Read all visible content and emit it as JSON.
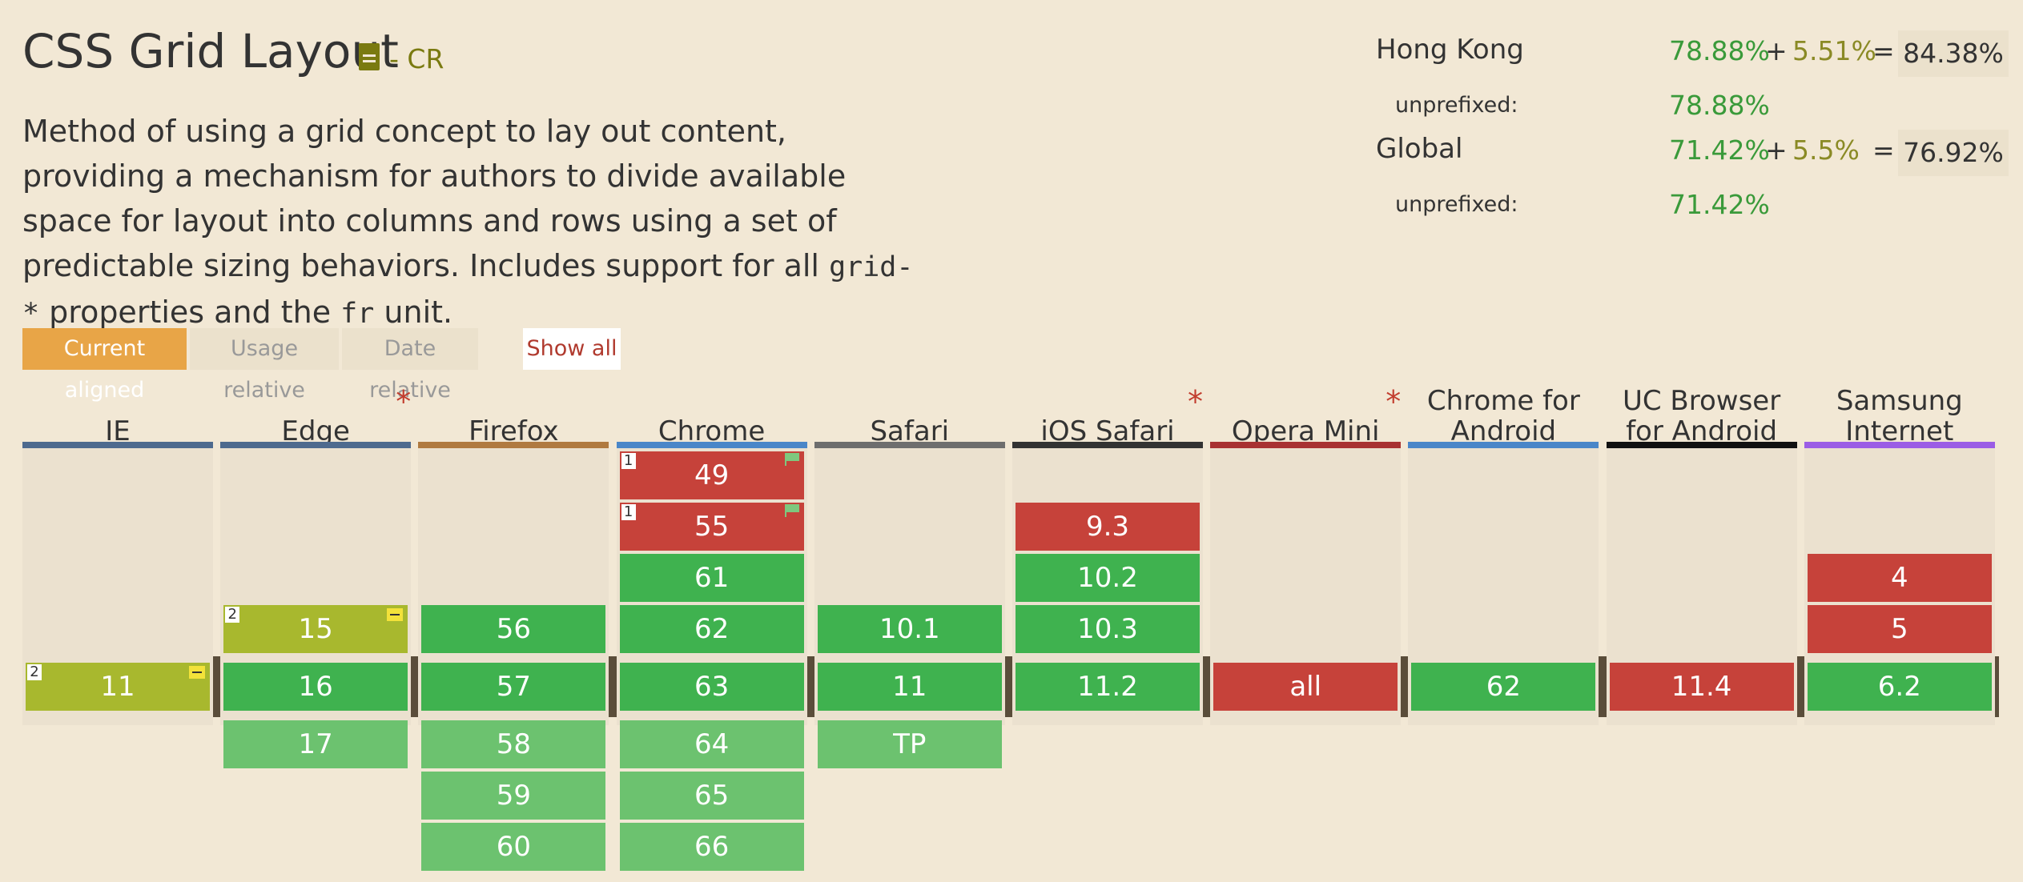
{
  "feature": {
    "title": "CSS Grid Layout",
    "status": "- CR",
    "description_parts": [
      "Method of using a grid concept to lay out content, providing a mechanism for authors to divide available space for layout into columns and rows using a set of predictable sizing behaviors. Includes support for all ",
      "grid-*",
      " properties and the ",
      "fr",
      " unit."
    ]
  },
  "usage": {
    "rows": [
      {
        "label": "Hong Kong",
        "full": "78.88%",
        "plus": "+",
        "partial": "5.51%",
        "eq": "=",
        "total": "84.38%"
      },
      {
        "label": "unprefixed:",
        "full": "78.88%"
      },
      {
        "label": "Global",
        "full": "71.42%",
        "plus": "+",
        "partial": "5.5%",
        "eq": "=",
        "total": "76.92%"
      },
      {
        "label": "unprefixed:",
        "full": "71.42%"
      }
    ]
  },
  "tabs": {
    "current_aligned": "Current aligned",
    "usage_relative": "Usage relative",
    "date_relative": "Date relative",
    "show_all": "Show all"
  },
  "colors": {
    "supported": "#3fb24f",
    "future_supported": "#6cc26f",
    "unsupported": "#c6423a",
    "partial": "#a8b82e",
    "accent": "#e8a547"
  },
  "browsers": [
    {
      "name": "IE",
      "star": "",
      "bar": "#4e6a8e",
      "cells": {
        "current": {
          "v": "11",
          "s": "partial",
          "note": "2",
          "minus": true
        }
      }
    },
    {
      "name": "Edge",
      "star": "*",
      "bar": "#4e6a8e",
      "cells": {
        "p1": {
          "v": "15",
          "s": "partial",
          "note": "2",
          "minus": true
        },
        "current": {
          "v": "16",
          "s": "supported"
        },
        "f1": {
          "v": "17",
          "s": "future"
        }
      }
    },
    {
      "name": "Firefox",
      "star": "",
      "bar": "#b07a40",
      "cells": {
        "p1": {
          "v": "56",
          "s": "supported"
        },
        "current": {
          "v": "57",
          "s": "supported"
        },
        "f1": {
          "v": "58",
          "s": "future"
        },
        "f2": {
          "v": "59",
          "s": "future"
        },
        "f3": {
          "v": "60",
          "s": "future"
        }
      }
    },
    {
      "name": "Chrome",
      "star": "",
      "bar": "#4a86c8",
      "cells": {
        "p4": {
          "v": "49",
          "s": "unsupported",
          "note": "1",
          "flag": true
        },
        "p3": {
          "v": "55",
          "s": "unsupported",
          "note": "1",
          "flag": true
        },
        "p2": {
          "v": "61",
          "s": "supported"
        },
        "p1": {
          "v": "62",
          "s": "supported"
        },
        "current": {
          "v": "63",
          "s": "supported"
        },
        "f1": {
          "v": "64",
          "s": "future"
        },
        "f2": {
          "v": "65",
          "s": "future"
        },
        "f3": {
          "v": "66",
          "s": "future"
        }
      }
    },
    {
      "name": "Safari",
      "star": "",
      "bar": "#6e6e6e",
      "cells": {
        "p1": {
          "v": "10.1",
          "s": "supported"
        },
        "current": {
          "v": "11",
          "s": "supported"
        },
        "f1": {
          "v": "TP",
          "s": "future"
        }
      }
    },
    {
      "name": "iOS Safari",
      "star": "*",
      "bar": "#333333",
      "cells": {
        "p3": {
          "v": "9.3",
          "s": "unsupported"
        },
        "p2": {
          "v": "10.2",
          "s": "supported"
        },
        "p1": {
          "v": "10.3",
          "s": "supported"
        },
        "current": {
          "v": "11.2",
          "s": "supported"
        }
      }
    },
    {
      "name": "Opera Mini",
      "star": "*",
      "bar": "#a83232",
      "cells": {
        "current": {
          "v": "all",
          "s": "unsupported"
        }
      }
    },
    {
      "name": "Chrome for Android",
      "star": "",
      "bar": "#4a86c8",
      "cells": {
        "current": {
          "v": "62",
          "s": "supported"
        }
      }
    },
    {
      "name": "UC Browser for Android",
      "star": "",
      "bar": "#111111",
      "cells": {
        "current": {
          "v": "11.4",
          "s": "unsupported"
        }
      }
    },
    {
      "name": "Samsung Internet",
      "star": "",
      "bar": "#9b5de5",
      "cells": {
        "p2": {
          "v": "4",
          "s": "unsupported"
        },
        "p1": {
          "v": "5",
          "s": "unsupported"
        },
        "current": {
          "v": "6.2",
          "s": "supported"
        }
      }
    }
  ]
}
